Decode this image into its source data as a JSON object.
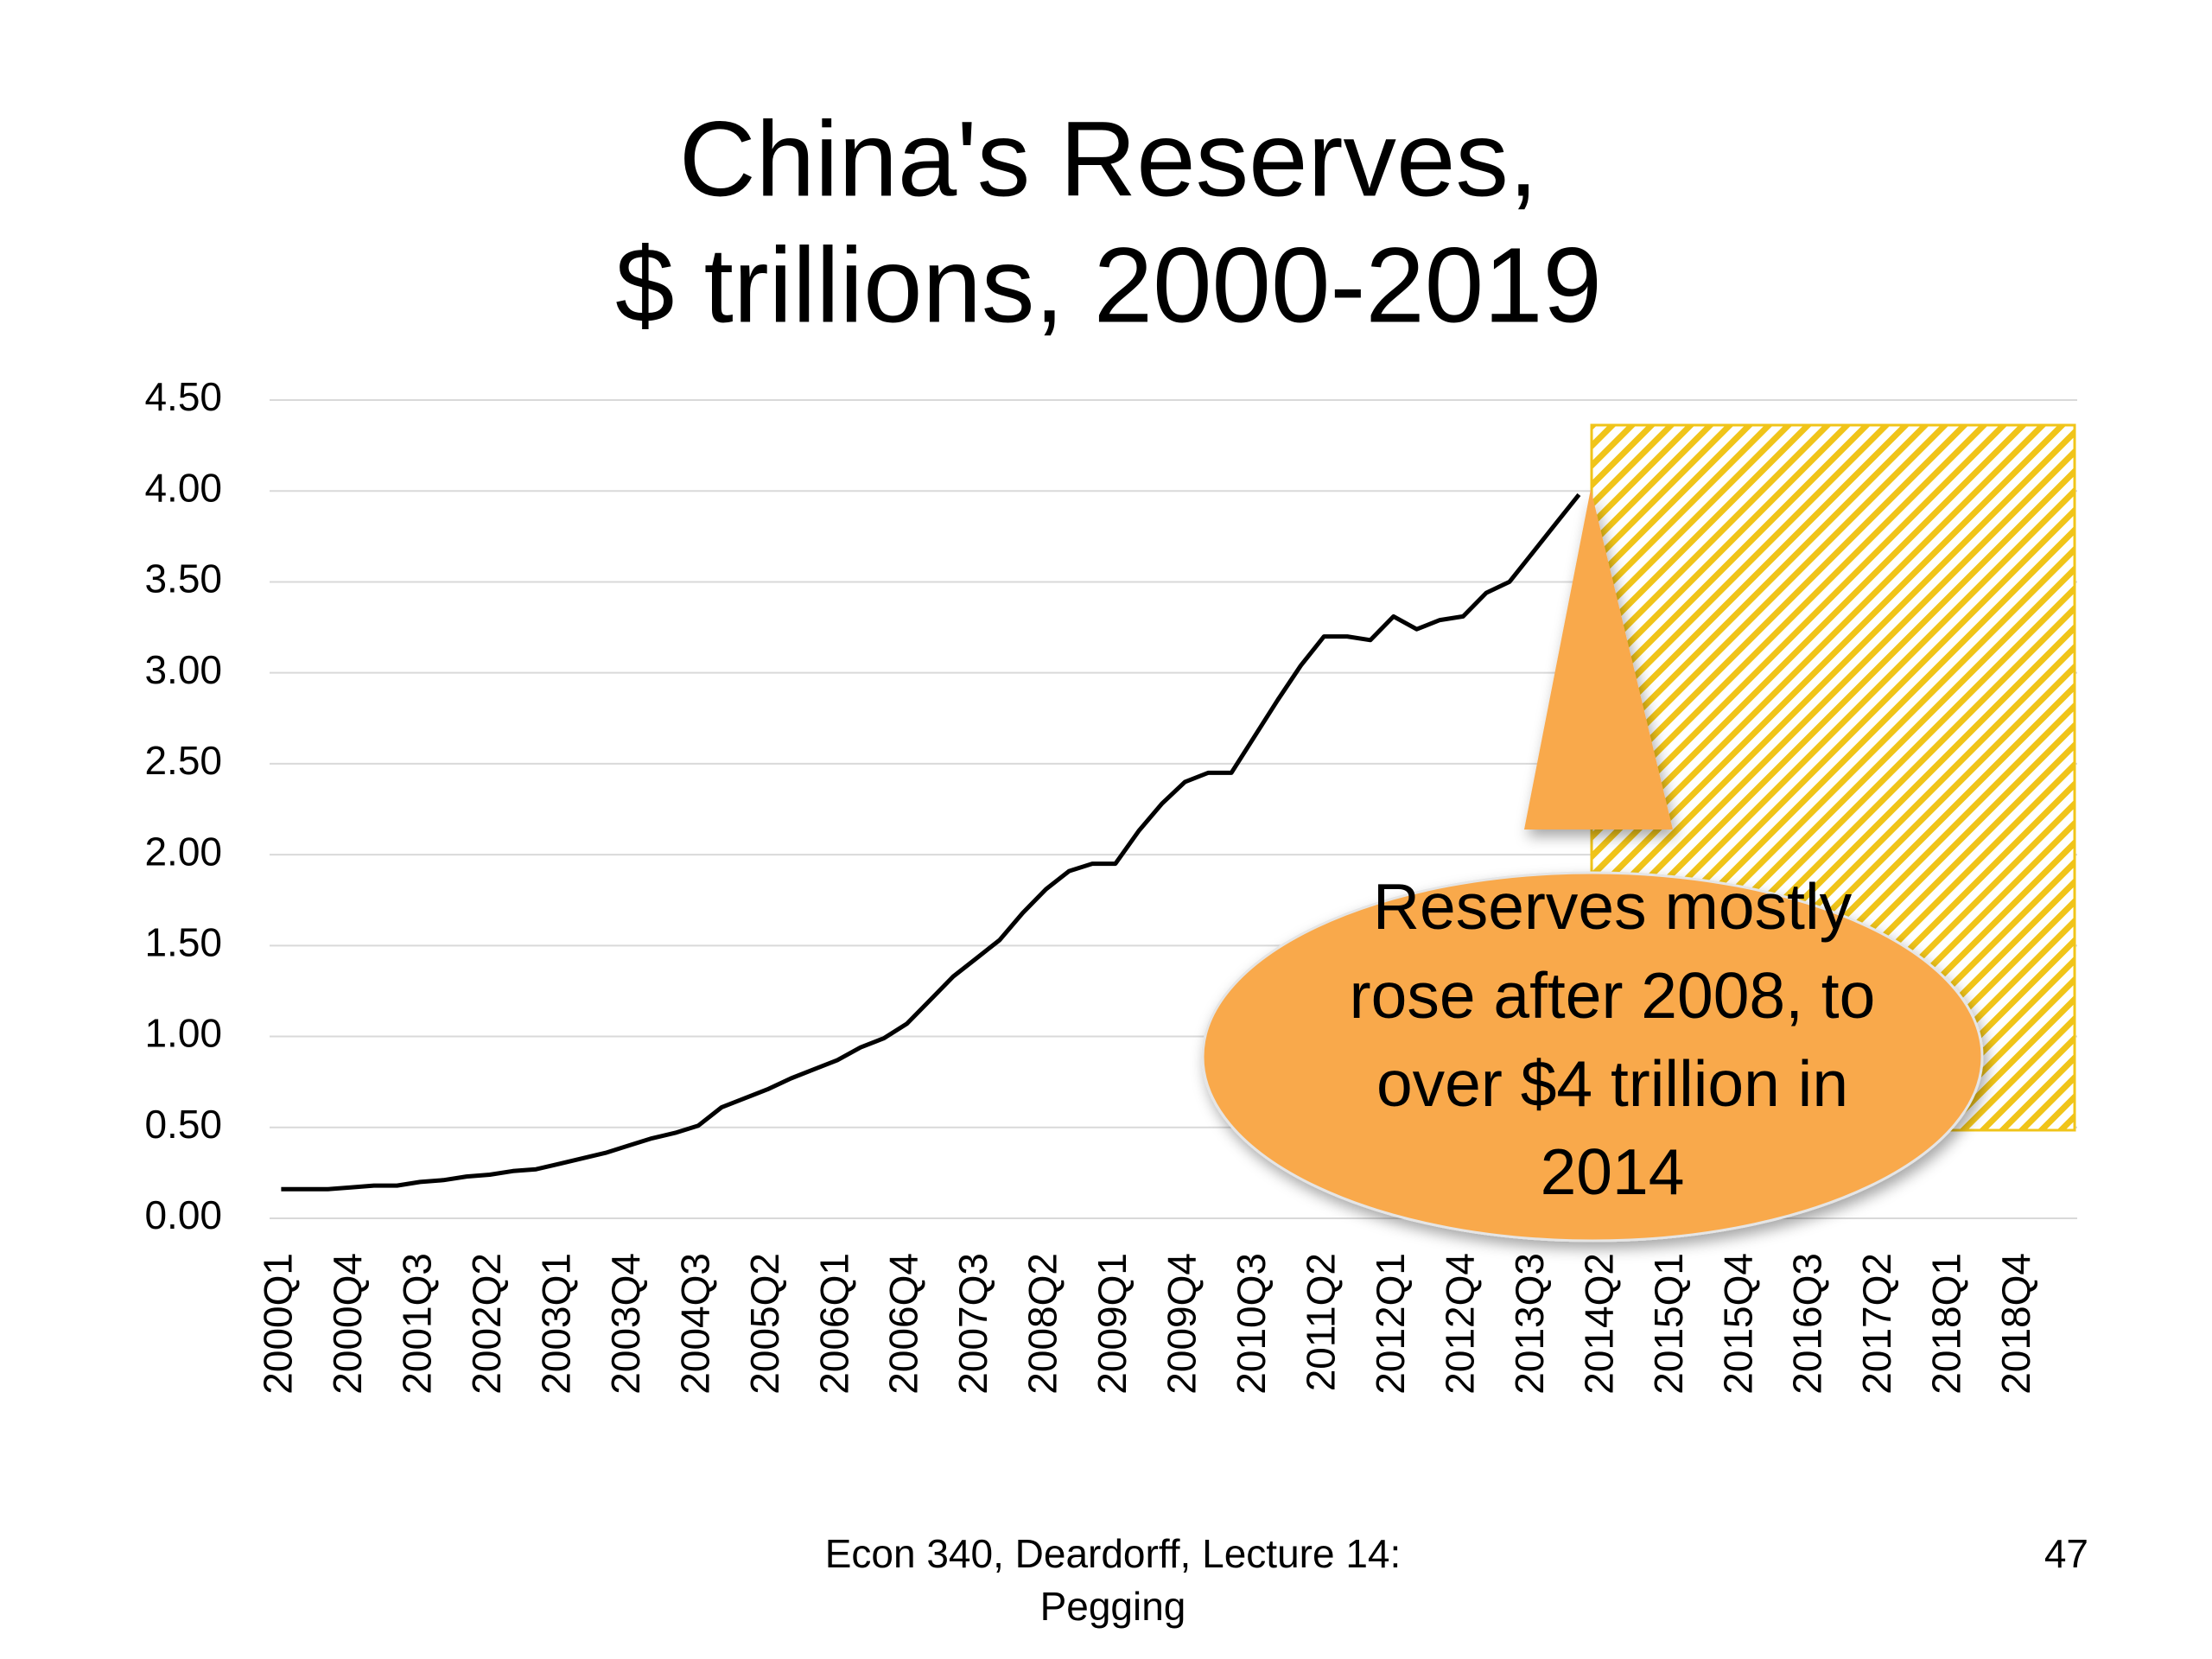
{
  "chart_data": {
    "type": "line",
    "title": [
      "China's Reserves,",
      "$ trillions, 2000-2019"
    ],
    "categories": [
      "2000Q1",
      null,
      null,
      "2000Q4",
      null,
      null,
      "2001Q3",
      null,
      null,
      "2002Q2",
      null,
      null,
      "2003Q1",
      null,
      null,
      "2003Q4",
      null,
      null,
      "2004Q3",
      null,
      null,
      "2005Q2",
      null,
      null,
      "2006Q1",
      null,
      null,
      "2006Q4",
      null,
      null,
      "2007Q3",
      null,
      null,
      "2008Q2",
      null,
      null,
      "2009Q1",
      null,
      null,
      "2009Q4",
      null,
      null,
      "2010Q3",
      null,
      null,
      "2011Q2",
      null,
      null,
      "2012Q1",
      null,
      null,
      "2012Q4",
      null,
      null,
      "2013Q3",
      null,
      null,
      "2014Q2",
      null,
      null,
      "2015Q1",
      null,
      null,
      "2015Q4",
      null,
      null,
      "2016Q3",
      null,
      null,
      "2017Q2",
      null,
      null,
      "2018Q1",
      null,
      null,
      "2018Q4",
      null,
      null
    ],
    "values": [
      0.16,
      0.16,
      0.16,
      0.17,
      0.18,
      0.18,
      0.2,
      0.21,
      0.23,
      0.24,
      0.26,
      0.27,
      0.3,
      0.33,
      0.36,
      0.4,
      0.44,
      0.47,
      0.51,
      0.61,
      0.66,
      0.71,
      0.77,
      0.82,
      0.87,
      0.94,
      0.99,
      1.07,
      1.2,
      1.33,
      1.43,
      1.53,
      1.68,
      1.81,
      1.91,
      1.95,
      1.95,
      2.13,
      2.28,
      2.4,
      2.45,
      2.45,
      2.65,
      2.85,
      3.04,
      3.2,
      3.2,
      3.18,
      3.31,
      3.24,
      3.29,
      3.31,
      3.44,
      3.5,
      3.66,
      3.82,
      3.98,
      null,
      null,
      null,
      null,
      null,
      null,
      null,
      null,
      null,
      null,
      null,
      null,
      null,
      null,
      null,
      null,
      null,
      null,
      null,
      null,
      null
    ],
    "color": "#000000",
    "ylim": [
      0,
      4.5
    ],
    "yticks": [
      {
        "value": 0,
        "label": "0.00"
      },
      {
        "value": 0.5,
        "label": "0.50"
      },
      {
        "value": 1,
        "label": "1.00"
      },
      {
        "value": 1.5,
        "label": "1.50"
      },
      {
        "value": 2,
        "label": "2.00"
      },
      {
        "value": 2.5,
        "label": "2.50"
      },
      {
        "value": 3,
        "label": "3.00"
      },
      {
        "value": 3.5,
        "label": "3.50"
      },
      {
        "value": 4,
        "label": "4.00"
      },
      {
        "value": 4.5,
        "label": "4.50"
      }
    ],
    "grid": true,
    "annotation": [
      "Reserves mostly",
      "rose after 2008, to",
      "over $4 trillion in",
      "2014"
    ]
  },
  "footer": [
    "Econ 340, Deardorff, Lecture 14:",
    "Pegging"
  ],
  "page_number": "47"
}
